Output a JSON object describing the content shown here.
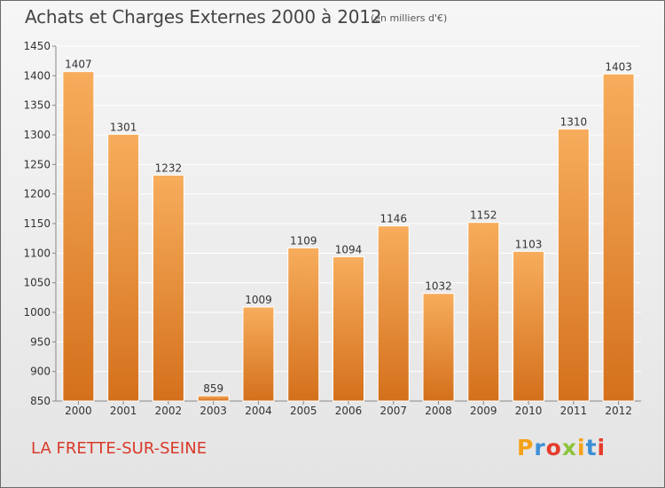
{
  "header": {
    "title": "Achats et Charges Externes 2000 à 2012",
    "subtitle": "(en milliers d'€)"
  },
  "footer": {
    "commune": "LA FRETTE-SUR-SEINE",
    "logo": {
      "letters": [
        "P",
        "r",
        "o",
        "x",
        "i",
        "t",
        "i"
      ],
      "colors": [
        "#f5a21a",
        "#3c8fd6",
        "#e43c2c",
        "#8cc43c",
        "#f5a21a",
        "#3c8fd6",
        "#e43c2c"
      ]
    }
  },
  "colors": {
    "bar_light": "#f7ad5c",
    "bar_dark": "#d4701c",
    "grid": "#ffffff",
    "axis": "#888888",
    "commune_text": "#d83a2a"
  },
  "chart_data": {
    "type": "bar",
    "title": "Achats et Charges Externes 2000 à 2012",
    "subtitle": "(en milliers d'€)",
    "categories": [
      "2000",
      "2001",
      "2002",
      "2003",
      "2004",
      "2005",
      "2006",
      "2007",
      "2008",
      "2009",
      "2010",
      "2011",
      "2012"
    ],
    "values": [
      1407,
      1301,
      1232,
      859,
      1009,
      1109,
      1094,
      1146,
      1032,
      1152,
      1103,
      1310,
      1403
    ],
    "ylim": [
      850,
      1450
    ],
    "yticks": [
      850,
      900,
      950,
      1000,
      1050,
      1100,
      1150,
      1200,
      1250,
      1300,
      1350,
      1400,
      1450
    ],
    "grid": true,
    "data_labels": true
  }
}
